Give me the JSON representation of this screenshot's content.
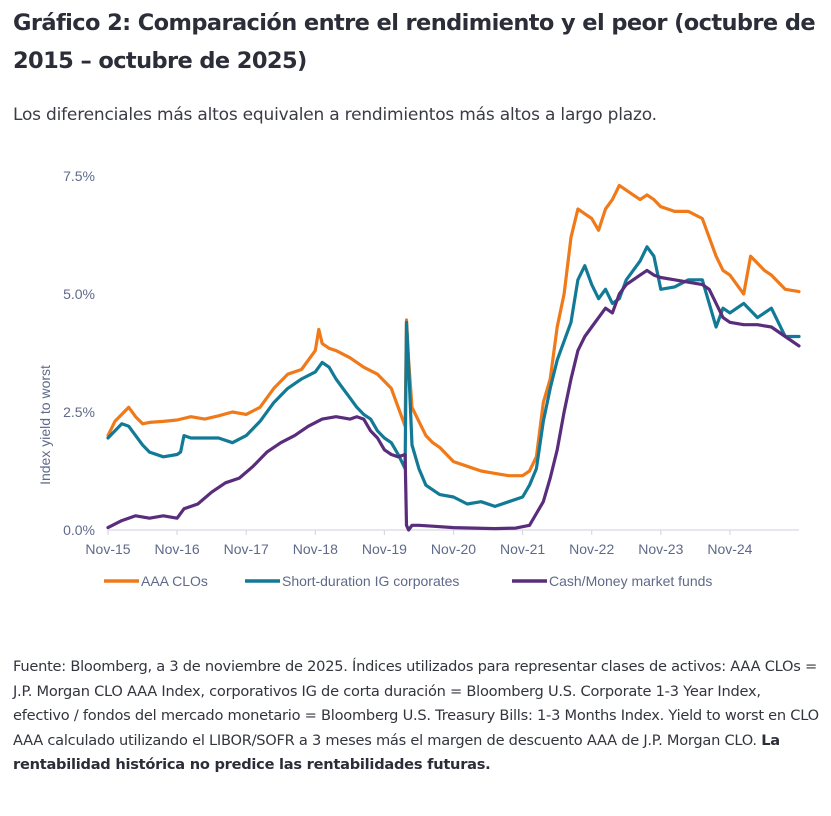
{
  "header": {
    "title": "Gráfico 2: Comparación entre el rendimiento y el peor (octubre de 2015 – octubre de 2025)",
    "subtitle": "Los diferenciales más altos equivalen a rendimientos más altos a largo plazo."
  },
  "footnote": {
    "text": "Fuente: Bloomberg, a 3 de noviembre de 2025. Índices utilizados para representar clases de activos: AAA CLOs = J.P. Morgan CLO AAA Index, corporativos IG de corta duración = Bloomberg U.S. Corporate 1-3 Year Index, efectivo / fondos del mercado monetario = Bloomberg U.S. Treasury Bills: 1-3 Months Index. Yield to worst en CLO AAA calculado utilizando el LIBOR/SOFR a 3 meses más el margen de descuento AAA de J.P. Morgan CLO.",
    "bold_text": "La rentabilidad histórica no predice las rentabilidades futuras."
  },
  "chart_data": {
    "type": "line",
    "title": "",
    "xlabel": "",
    "ylabel": "Index yield to worst",
    "x_unit": "years since Nov-2015",
    "xlim": [
      0,
      10.0
    ],
    "ylim": [
      0,
      7.5
    ],
    "y_ticks": [
      0.0,
      2.5,
      5.0,
      7.5
    ],
    "y_tick_labels": [
      "0.0%",
      "2.5%",
      "5.0%",
      "7.5%"
    ],
    "x_ticks": [
      0,
      1,
      2,
      3,
      4,
      5,
      6,
      7,
      8,
      9
    ],
    "x_tick_labels": [
      "Nov-15",
      "Nov-16",
      "Nov-17",
      "Nov-18",
      "Nov-19",
      "Nov-20",
      "Nov-21",
      "Nov-22",
      "Nov-23",
      "Nov-24"
    ],
    "grid": false,
    "legend_position": "bottom",
    "series": [
      {
        "name": "AAA CLOs",
        "color": "#f07a1a",
        "x": [
          0,
          0.1,
          0.2,
          0.3,
          0.4,
          0.5,
          0.6,
          0.8,
          1.0,
          1.2,
          1.4,
          1.6,
          1.8,
          2.0,
          2.2,
          2.4,
          2.6,
          2.8,
          3.0,
          3.05,
          3.1,
          3.2,
          3.3,
          3.5,
          3.7,
          3.9,
          4.1,
          4.2,
          4.3,
          4.32,
          4.35,
          4.4,
          4.5,
          4.6,
          4.7,
          4.8,
          5.0,
          5.2,
          5.4,
          5.6,
          5.8,
          6.0,
          6.1,
          6.2,
          6.3,
          6.4,
          6.5,
          6.6,
          6.7,
          6.8,
          6.9,
          7.0,
          7.1,
          7.2,
          7.3,
          7.4,
          7.5,
          7.6,
          7.7,
          7.8,
          7.9,
          8.0,
          8.2,
          8.4,
          8.6,
          8.8,
          8.9,
          9.0,
          9.1,
          9.2,
          9.3,
          9.4,
          9.5,
          9.6,
          9.8,
          10.0
        ],
        "values": [
          2.0,
          2.3,
          2.45,
          2.6,
          2.4,
          2.25,
          2.28,
          2.3,
          2.33,
          2.4,
          2.35,
          2.42,
          2.5,
          2.45,
          2.6,
          3.0,
          3.3,
          3.4,
          3.8,
          4.25,
          3.95,
          3.85,
          3.8,
          3.65,
          3.45,
          3.3,
          3.0,
          2.6,
          2.2,
          4.45,
          3.6,
          2.6,
          2.3,
          2.0,
          1.85,
          1.75,
          1.45,
          1.35,
          1.25,
          1.2,
          1.15,
          1.15,
          1.25,
          1.55,
          2.7,
          3.2,
          4.3,
          5.0,
          6.2,
          6.8,
          6.7,
          6.6,
          6.35,
          6.8,
          7.0,
          7.3,
          7.2,
          7.1,
          7.0,
          7.1,
          7.0,
          6.85,
          6.75,
          6.75,
          6.6,
          5.8,
          5.5,
          5.4,
          5.2,
          5.0,
          5.8,
          5.65,
          5.5,
          5.4,
          5.1,
          5.05
        ]
      },
      {
        "name": "Short-duration IG corporates",
        "color": "#127a96",
        "x": [
          0,
          0.1,
          0.2,
          0.3,
          0.4,
          0.5,
          0.6,
          0.8,
          1.0,
          1.05,
          1.1,
          1.2,
          1.4,
          1.6,
          1.8,
          2.0,
          2.2,
          2.4,
          2.6,
          2.8,
          3.0,
          3.1,
          3.2,
          3.3,
          3.4,
          3.5,
          3.6,
          3.7,
          3.8,
          3.9,
          4.0,
          4.1,
          4.2,
          4.3,
          4.32,
          4.35,
          4.4,
          4.5,
          4.6,
          4.8,
          5.0,
          5.2,
          5.4,
          5.6,
          5.8,
          6.0,
          6.1,
          6.2,
          6.3,
          6.4,
          6.5,
          6.6,
          6.7,
          6.8,
          6.9,
          7.0,
          7.1,
          7.2,
          7.3,
          7.4,
          7.5,
          7.6,
          7.7,
          7.8,
          7.9,
          8.0,
          8.2,
          8.4,
          8.6,
          8.7,
          8.8,
          8.9,
          9.0,
          9.2,
          9.4,
          9.6,
          9.8,
          10.0
        ],
        "values": [
          1.95,
          2.1,
          2.25,
          2.2,
          2.0,
          1.8,
          1.65,
          1.55,
          1.6,
          1.65,
          2.0,
          1.95,
          1.95,
          1.95,
          1.85,
          2.0,
          2.3,
          2.7,
          3.0,
          3.2,
          3.35,
          3.55,
          3.45,
          3.2,
          3.0,
          2.8,
          2.6,
          2.45,
          2.35,
          2.1,
          1.95,
          1.85,
          1.6,
          1.3,
          4.4,
          3.5,
          1.8,
          1.3,
          0.95,
          0.75,
          0.7,
          0.55,
          0.6,
          0.5,
          0.6,
          0.7,
          0.95,
          1.3,
          2.3,
          3.0,
          3.6,
          4.0,
          4.4,
          5.3,
          5.6,
          5.2,
          4.9,
          5.1,
          4.8,
          4.9,
          5.3,
          5.5,
          5.7,
          6.0,
          5.8,
          5.1,
          5.15,
          5.3,
          5.3,
          4.8,
          4.3,
          4.7,
          4.6,
          4.8,
          4.5,
          4.7,
          4.1,
          4.1
        ]
      },
      {
        "name": "Cash/Money market funds",
        "color": "#5a2d7c",
        "x": [
          0,
          0.2,
          0.4,
          0.6,
          0.8,
          1.0,
          1.1,
          1.3,
          1.5,
          1.7,
          1.9,
          2.1,
          2.3,
          2.5,
          2.7,
          2.9,
          3.1,
          3.3,
          3.5,
          3.6,
          3.7,
          3.8,
          3.9,
          4.0,
          4.1,
          4.2,
          4.3,
          4.32,
          4.35,
          4.4,
          4.5,
          4.7,
          5.0,
          5.3,
          5.6,
          5.9,
          6.1,
          6.2,
          6.3,
          6.4,
          6.5,
          6.6,
          6.7,
          6.8,
          6.9,
          7.0,
          7.1,
          7.2,
          7.3,
          7.4,
          7.5,
          7.6,
          7.7,
          7.8,
          7.9,
          8.0,
          8.2,
          8.4,
          8.6,
          8.7,
          8.8,
          8.9,
          9.0,
          9.2,
          9.4,
          9.6,
          9.8,
          10.0
        ],
        "values": [
          0.05,
          0.2,
          0.3,
          0.25,
          0.3,
          0.25,
          0.45,
          0.55,
          0.8,
          1.0,
          1.1,
          1.35,
          1.65,
          1.85,
          2.0,
          2.2,
          2.35,
          2.4,
          2.35,
          2.4,
          2.35,
          2.1,
          1.95,
          1.7,
          1.6,
          1.55,
          1.6,
          0.1,
          0.0,
          0.1,
          0.1,
          0.08,
          0.05,
          0.04,
          0.03,
          0.04,
          0.1,
          0.35,
          0.6,
          1.1,
          1.7,
          2.5,
          3.2,
          3.8,
          4.1,
          4.3,
          4.5,
          4.7,
          4.6,
          5.0,
          5.2,
          5.3,
          5.4,
          5.5,
          5.4,
          5.35,
          5.3,
          5.25,
          5.2,
          5.1,
          4.8,
          4.5,
          4.4,
          4.35,
          4.35,
          4.3,
          4.1,
          3.9
        ]
      }
    ]
  }
}
